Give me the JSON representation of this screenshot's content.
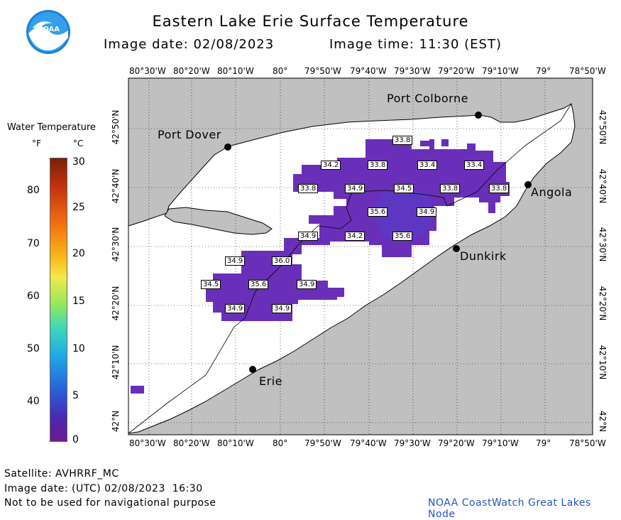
{
  "header": {
    "title": "Eastern Lake Erie Surface Temperature",
    "image_date_label": "Image date: 02/08/2023",
    "image_time_label": "Image time: 11:30 (EST)"
  },
  "legend": {
    "title": "Water Temperature",
    "unit_f": "°F",
    "unit_c": "°C",
    "f_ticks": [
      "80",
      "70",
      "60",
      "50",
      "40"
    ],
    "c_ticks": [
      "30",
      "25",
      "20",
      "15",
      "10",
      "5",
      "0"
    ]
  },
  "axes": {
    "lon_labels": [
      "80°30'W",
      "80°20'W",
      "80°10'W",
      "80°",
      "79°50'W",
      "79°40'W",
      "79°30'W",
      "79°20'W",
      "79°10'W",
      "79°",
      "78°50'W"
    ],
    "lat_labels": [
      "42°50'N",
      "42°40'N",
      "42°30'N",
      "42°20'N",
      "42°10'N",
      "42°N"
    ]
  },
  "places": {
    "port_colborne": "Port Colborne",
    "port_dover": "Port Dover",
    "angola": "Angola",
    "dunkirk": "Dunkirk",
    "erie": "Erie"
  },
  "temperature_labels": [
    {
      "id": "t1",
      "value": "33.8"
    },
    {
      "id": "t2",
      "value": "34.2"
    },
    {
      "id": "t3",
      "value": "33.8"
    },
    {
      "id": "t4",
      "value": "33.4"
    },
    {
      "id": "t5",
      "value": "33.4"
    },
    {
      "id": "t6",
      "value": "33.8"
    },
    {
      "id": "t7",
      "value": "34.9"
    },
    {
      "id": "t8",
      "value": "34.5"
    },
    {
      "id": "t9",
      "value": "33.8"
    },
    {
      "id": "t10",
      "value": "33.8"
    },
    {
      "id": "t11",
      "value": "35.6"
    },
    {
      "id": "t12",
      "value": "34.9"
    },
    {
      "id": "t13",
      "value": "34.9"
    },
    {
      "id": "t14",
      "value": "34.2"
    },
    {
      "id": "t15",
      "value": "35.6"
    },
    {
      "id": "t16",
      "value": "34.9"
    },
    {
      "id": "t17",
      "value": "36.0"
    },
    {
      "id": "t18",
      "value": "34.5"
    },
    {
      "id": "t19",
      "value": "35.6"
    },
    {
      "id": "t20",
      "value": "34.9"
    },
    {
      "id": "t21",
      "value": "34.9"
    },
    {
      "id": "t22",
      "value": "34.9"
    }
  ],
  "footer": {
    "satellite": "Satellite: AVHRRF_MC",
    "utc_date": "Image date: (UTC) 02/08/2023  16:30",
    "disclaimer": "Not to be used for navigational purpose",
    "credit": "NOAA CoastWatch Great Lakes Node"
  },
  "logo": {
    "text": "NOAA"
  },
  "colors": {
    "land": "#c0c0c0",
    "water": "#ffffff",
    "warm_water": "#6a2fb8",
    "warmest_water": "#5a37c2",
    "credit_text": "#1f57c4"
  }
}
